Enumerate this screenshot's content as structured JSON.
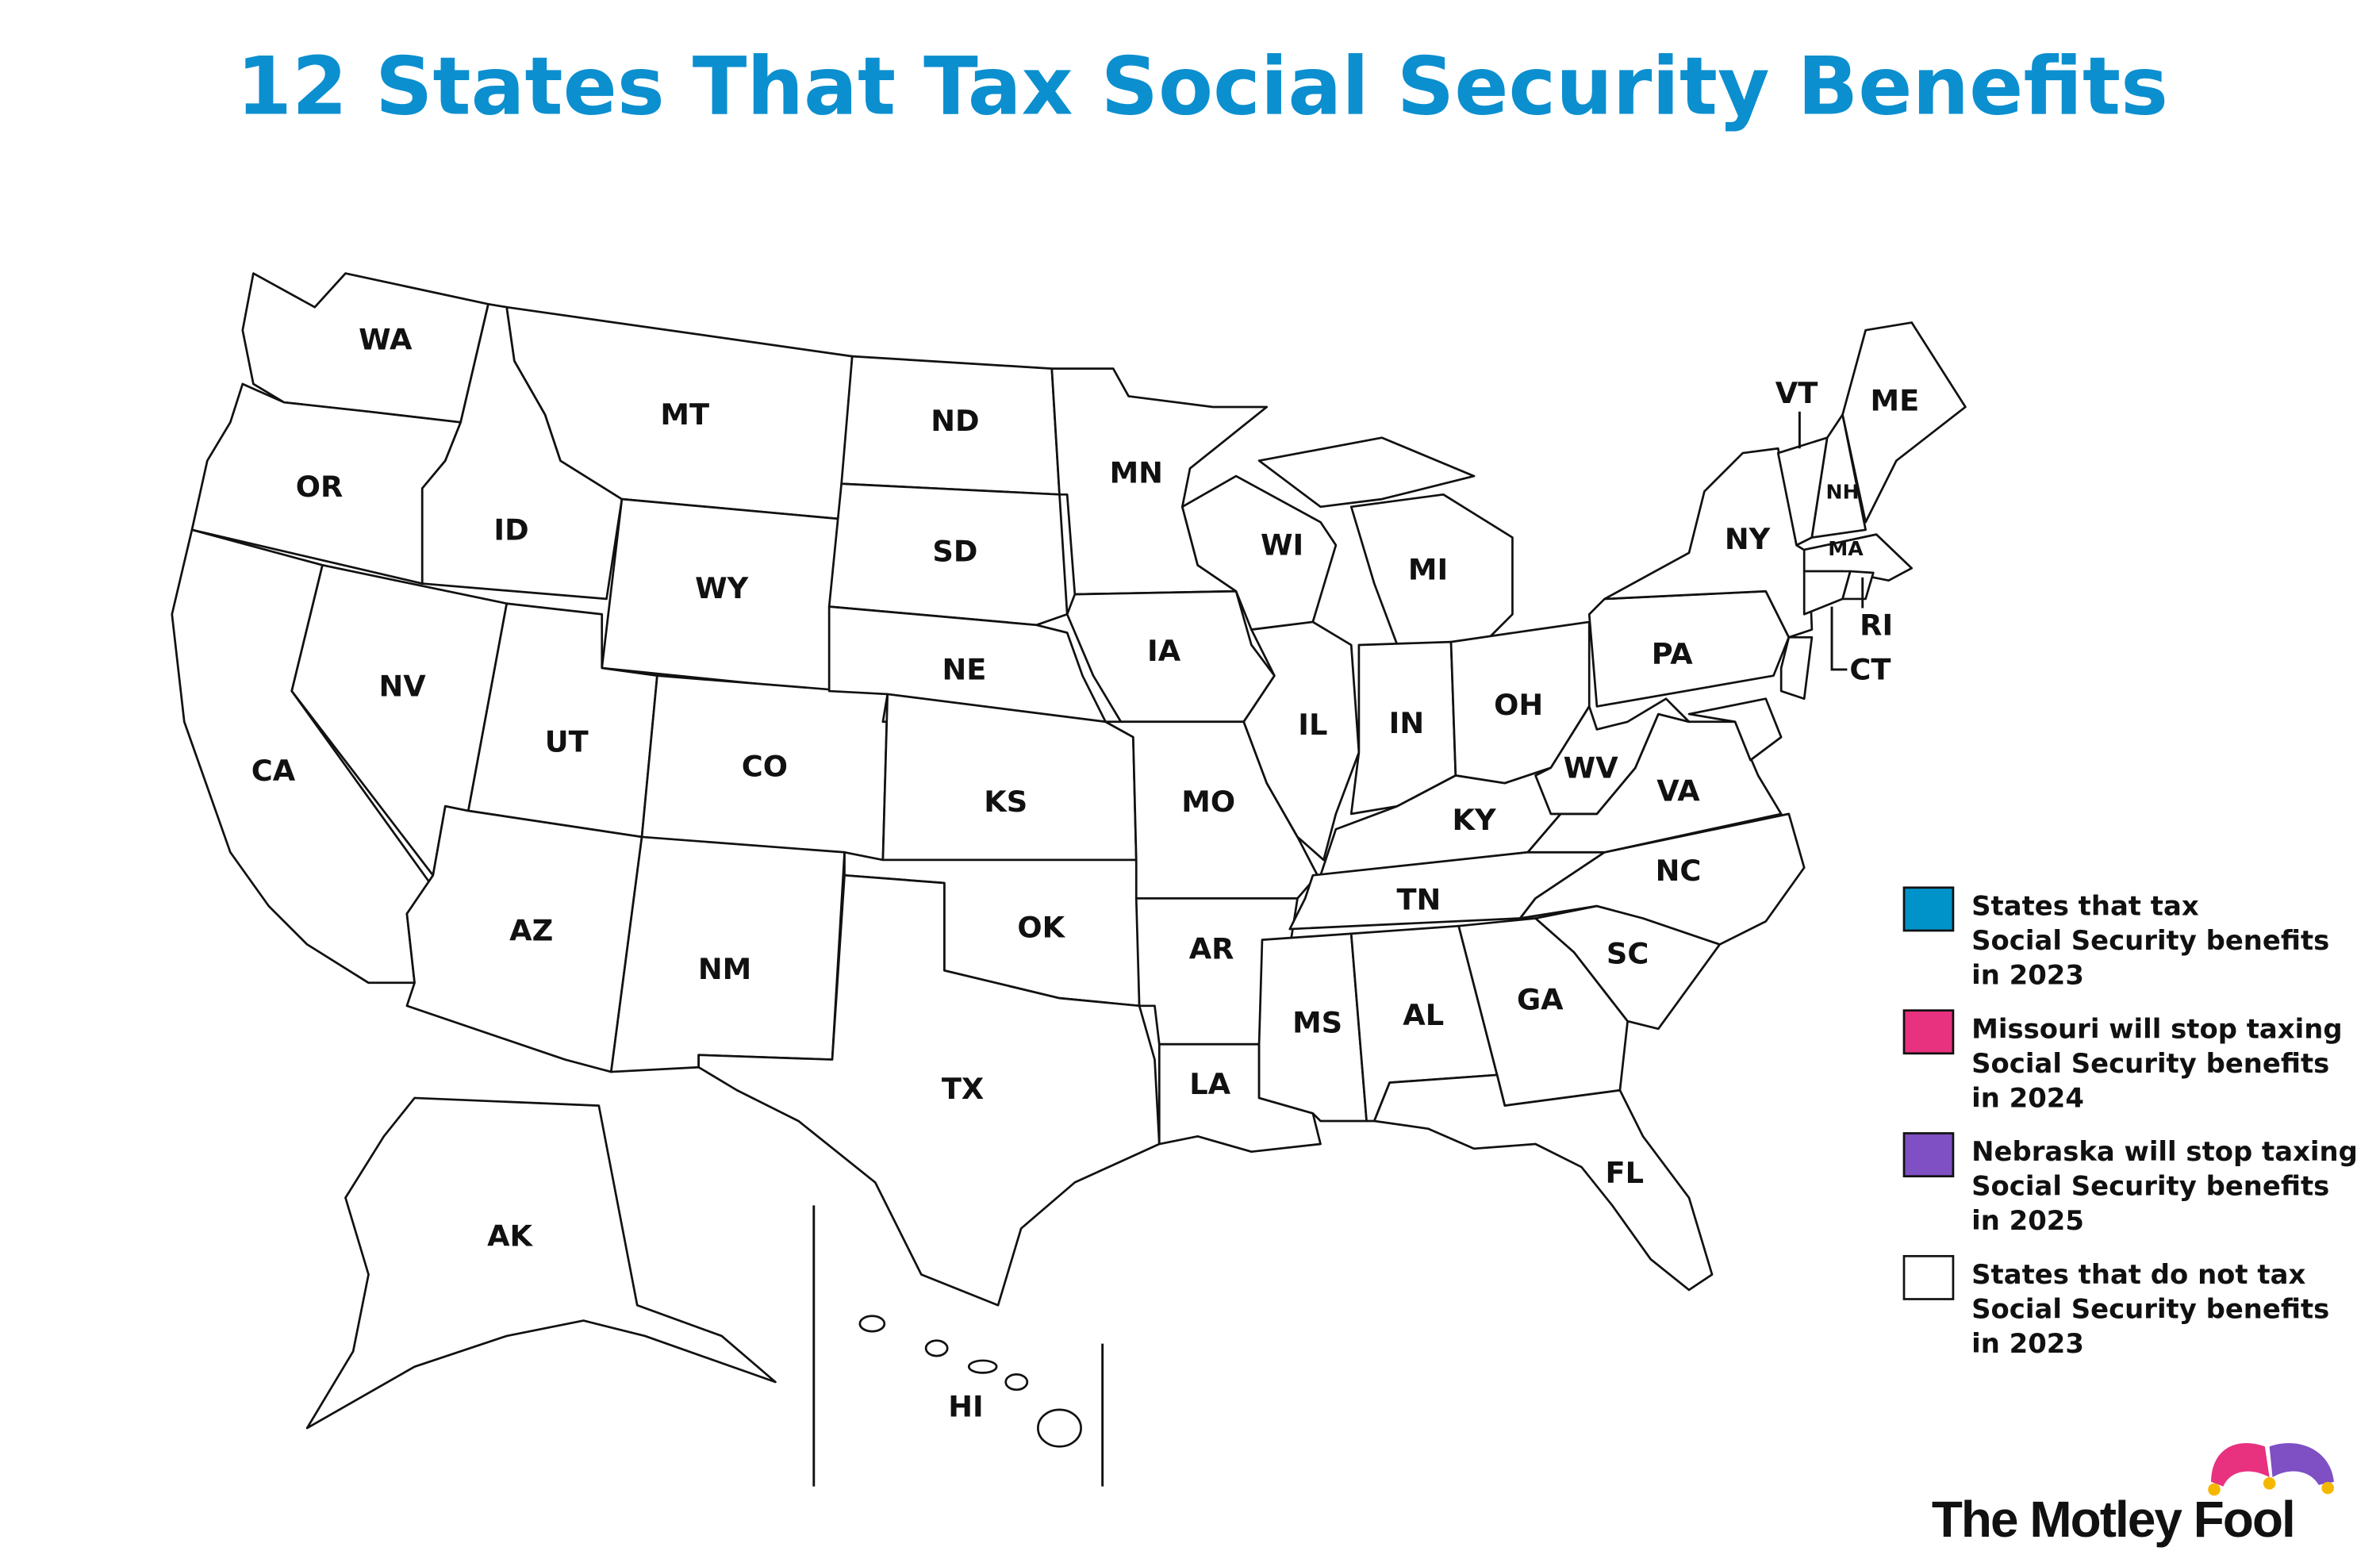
{
  "title": "12 States That Tax Social Security Benefits",
  "states": [
    {
      "label": "WA",
      "fill": "#ffffff"
    },
    {
      "label": "OR",
      "fill": "#ffffff"
    },
    {
      "label": "CA",
      "fill": "#ffffff"
    },
    {
      "label": "NV",
      "fill": "#ffffff"
    },
    {
      "label": "ID",
      "fill": "#ffffff"
    },
    {
      "label": "MT",
      "fill": "#0093c9"
    },
    {
      "label": "WY",
      "fill": "#ffffff"
    },
    {
      "label": "UT",
      "fill": "#0093c9"
    },
    {
      "label": "AZ",
      "fill": "#ffffff"
    },
    {
      "label": "CO",
      "fill": "#0093c9"
    },
    {
      "label": "NM",
      "fill": "#0093c9"
    },
    {
      "label": "ND",
      "fill": "#ffffff"
    },
    {
      "label": "SD",
      "fill": "#ffffff"
    },
    {
      "label": "NE",
      "fill": "#7f4fc4"
    },
    {
      "label": "KS",
      "fill": "#0093c9"
    },
    {
      "label": "OK",
      "fill": "#ffffff"
    },
    {
      "label": "TX",
      "fill": "#ffffff"
    },
    {
      "label": "MN",
      "fill": "#0093c9"
    },
    {
      "label": "IA",
      "fill": "#ffffff"
    },
    {
      "label": "MO",
      "fill": "#e8317f"
    },
    {
      "label": "AR",
      "fill": "#ffffff"
    },
    {
      "label": "LA",
      "fill": "#ffffff"
    },
    {
      "label": "WI",
      "fill": "#ffffff"
    },
    {
      "label": "IL",
      "fill": "#ffffff"
    },
    {
      "label": "MI",
      "fill": "#ffffff"
    },
    {
      "label": "IN",
      "fill": "#ffffff"
    },
    {
      "label": "OH",
      "fill": "#ffffff"
    },
    {
      "label": "KY",
      "fill": "#ffffff"
    },
    {
      "label": "TN",
      "fill": "#ffffff"
    },
    {
      "label": "MS",
      "fill": "#ffffff"
    },
    {
      "label": "AL",
      "fill": "#ffffff"
    },
    {
      "label": "GA",
      "fill": "#ffffff"
    },
    {
      "label": "FL",
      "fill": "#ffffff"
    },
    {
      "label": "SC",
      "fill": "#ffffff"
    },
    {
      "label": "NC",
      "fill": "#ffffff"
    },
    {
      "label": "VA",
      "fill": "#ffffff"
    },
    {
      "label": "WV",
      "fill": "#0093c9"
    },
    {
      "label": "PA",
      "fill": "#ffffff"
    },
    {
      "label": "NY",
      "fill": "#ffffff"
    },
    {
      "label": "VT",
      "fill": "#0093c9"
    },
    {
      "label": "NH",
      "fill": "#ffffff"
    },
    {
      "label": "ME",
      "fill": "#ffffff"
    },
    {
      "label": "MA",
      "fill": "#ffffff"
    },
    {
      "label": "CT",
      "fill": "#0093c9"
    },
    {
      "label": "RI",
      "fill": "#0093c9"
    },
    {
      "label": "AK",
      "fill": "#ffffff"
    },
    {
      "label": "HI",
      "fill": "#ffffff"
    }
  ],
  "legend": [
    {
      "lines": [
        "States that tax",
        "Social Security benefits",
        "in 2023"
      ],
      "color": "#0093c9"
    },
    {
      "lines": [
        "Missouri will stop taxing",
        "Social Security benefits",
        "in 2024"
      ],
      "color": "#e8317f"
    },
    {
      "lines": [
        "Nebraska will stop taxing",
        "Social Security benefits",
        "in 2025"
      ],
      "color": "#7f4fc4"
    },
    {
      "lines": [
        "States that do not tax",
        "Social Security benefits",
        "in 2023"
      ],
      "color": "#ffffff"
    }
  ],
  "logo": "The Motley Fool"
}
